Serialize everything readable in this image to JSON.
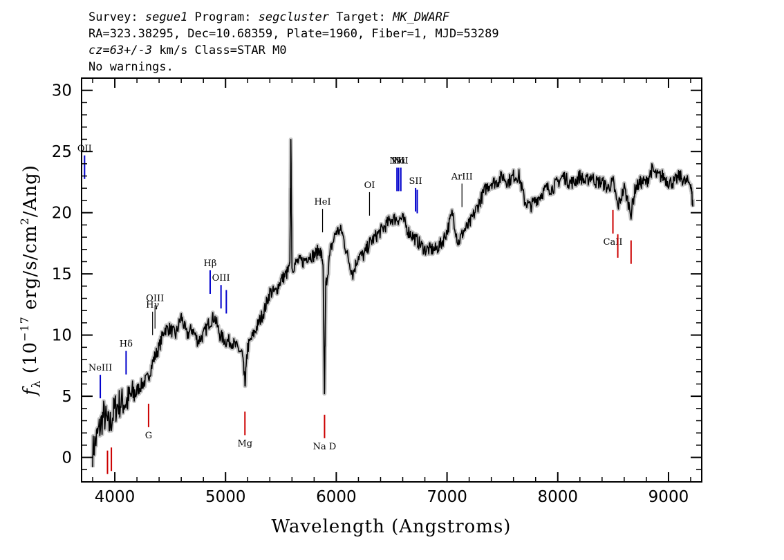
{
  "header": {
    "line1": {
      "p1": "Survey: ",
      "survey": "segue1",
      "p2": " Program: ",
      "program": "segcluster",
      "p3": " Target: ",
      "target": "MK_DWARF"
    },
    "line2": "RA=323.38295, Dec=10.68359, Plate=1960, Fiber=1, MJD=53289",
    "line3": {
      "cz": "cz=63+/-3",
      "rest": " km/s Class=STAR M0"
    },
    "line4": "No warnings."
  },
  "chart_data": {
    "type": "line",
    "xlabel": "Wavelength (Angstroms)",
    "ylabel": "fλ (10^-17 erg/s/cm^2/Ang)",
    "ylabel_parts": {
      "f": "f",
      "sub": "λ",
      "a": " (10",
      "exp1": "−17",
      "b": " erg/s/cm",
      "exp2": "2",
      "c": "/Ang)"
    },
    "xlim": [
      3700,
      9300
    ],
    "ylim": [
      -2,
      31
    ],
    "x_ticks": [
      4000,
      5000,
      6000,
      7000,
      8000,
      9000
    ],
    "x_tick_labels": [
      "4000",
      "5000",
      "6000",
      "7000",
      "8000",
      "9000"
    ],
    "y_ticks": [
      0,
      5,
      10,
      15,
      20,
      25,
      30
    ],
    "y_tick_labels": [
      "0",
      "5",
      "10",
      "15",
      "20",
      "25",
      "30"
    ],
    "series": [
      {
        "role": "flux",
        "color": "#000000",
        "x": [
          3800,
          3850,
          3900,
          3950,
          4000,
          4050,
          4100,
          4150,
          4200,
          4250,
          4300,
          4350,
          4400,
          4450,
          4500,
          4550,
          4600,
          4650,
          4700,
          4750,
          4800,
          4850,
          4900,
          4950,
          5000,
          5050,
          5100,
          5150,
          5175,
          5200,
          5250,
          5300,
          5350,
          5400,
          5450,
          5500,
          5550,
          5580,
          5590,
          5600,
          5650,
          5700,
          5750,
          5800,
          5850,
          5880,
          5893,
          5905,
          5950,
          6000,
          6050,
          6100,
          6150,
          6200,
          6250,
          6300,
          6350,
          6400,
          6450,
          6500,
          6550,
          6600,
          6650,
          6700,
          6750,
          6800,
          6850,
          6900,
          6950,
          7000,
          7050,
          7100,
          7150,
          7200,
          7250,
          7300,
          7350,
          7400,
          7450,
          7500,
          7550,
          7600,
          7650,
          7700,
          7750,
          7800,
          7850,
          7900,
          7950,
          8000,
          8050,
          8100,
          8150,
          8200,
          8250,
          8300,
          8350,
          8400,
          8450,
          8500,
          8542,
          8600,
          8662,
          8700,
          8750,
          8800,
          8850,
          8900,
          8950,
          9000,
          9050,
          9100,
          9150,
          9200,
          9220
        ],
        "y": [
          0.5,
          2,
          3.5,
          2.5,
          4,
          4.5,
          4.5,
          5,
          5.5,
          6,
          6.5,
          8,
          9,
          10.5,
          10.5,
          10,
          11.5,
          10,
          10.5,
          9.5,
          10,
          11,
          11.5,
          10,
          9.5,
          9.5,
          9,
          8.5,
          6,
          9,
          10,
          11,
          12,
          13.5,
          13.5,
          14.5,
          15,
          15.5,
          25.5,
          15.5,
          16,
          16,
          16.5,
          16.5,
          17,
          16,
          5,
          14,
          17,
          18.5,
          18.5,
          16.5,
          15,
          16.5,
          16.5,
          17.5,
          18,
          18.5,
          19,
          19.5,
          19.5,
          19.5,
          18.5,
          18,
          17.5,
          17,
          17,
          17,
          17.5,
          18.5,
          20,
          17.5,
          18.5,
          19,
          20,
          21,
          22,
          22.5,
          22.5,
          23,
          22.5,
          23,
          23,
          21,
          20.5,
          21,
          21.5,
          22,
          22,
          22.5,
          23,
          22.5,
          22.5,
          23,
          22.5,
          23,
          22.5,
          22.5,
          22,
          22.5,
          20.5,
          22,
          20,
          22,
          22.5,
          22.5,
          23.5,
          23,
          23,
          22.5,
          22.5,
          23,
          22.5,
          22.5,
          20.5
        ]
      },
      {
        "role": "uncertainty",
        "color": "#c4c4c4"
      }
    ],
    "lines": [
      {
        "label": "OII",
        "wave": 3727,
        "side": "up",
        "color": "#0000cc"
      },
      {
        "label": "NeIII",
        "wave": 3869,
        "side": "up",
        "color": "#0000cc"
      },
      {
        "label": "Hδ",
        "wave": 4102,
        "side": "up",
        "color": "#0000cc"
      },
      {
        "label": "Hγ",
        "wave": 4341,
        "side": "up",
        "color": "#000000"
      },
      {
        "label": "OIII",
        "wave": 4363,
        "side": "up",
        "color": "#000000"
      },
      {
        "label": "Hβ",
        "wave": 4861,
        "side": "up",
        "color": "#0000cc"
      },
      {
        "label": "OIII",
        "wave": 4959,
        "side": "up",
        "color": "#0000cc"
      },
      {
        "label": "",
        "wave": 5007,
        "side": "up",
        "color": "#0000cc"
      },
      {
        "label": "HeI",
        "wave": 5876,
        "side": "up",
        "color": "#000000"
      },
      {
        "label": "OI",
        "wave": 6300,
        "side": "up",
        "color": "#000000"
      },
      {
        "label": "NII",
        "wave": 6548,
        "side": "up",
        "color": "#0000cc"
      },
      {
        "label": "Hα",
        "wave": 6563,
        "side": "up",
        "color": "#0000cc"
      },
      {
        "label": "NII",
        "wave": 6583,
        "side": "up",
        "color": "#0000cc"
      },
      {
        "label": "SII",
        "wave": 6716,
        "side": "up",
        "color": "#0000cc"
      },
      {
        "label": "",
        "wave": 6731,
        "side": "up",
        "color": "#0000cc"
      },
      {
        "label": "ArIII",
        "wave": 7135,
        "side": "up",
        "color": "#000000"
      },
      {
        "label": "",
        "wave": 3934,
        "side": "down",
        "color": "#cc0000"
      },
      {
        "label": "",
        "wave": 3969,
        "side": "down",
        "color": "#cc0000"
      },
      {
        "label": "G",
        "wave": 4305,
        "side": "down",
        "color": "#cc0000"
      },
      {
        "label": "Mg",
        "wave": 5175,
        "side": "down",
        "color": "#cc0000"
      },
      {
        "label": "Na D",
        "wave": 5894,
        "side": "down",
        "color": "#cc0000"
      },
      {
        "label": "CaII",
        "wave": 8498,
        "side": "down",
        "color": "#cc0000"
      },
      {
        "label": "",
        "wave": 8542,
        "side": "down",
        "color": "#cc0000"
      },
      {
        "label": "",
        "wave": 8662,
        "side": "down",
        "color": "#cc0000"
      }
    ]
  }
}
